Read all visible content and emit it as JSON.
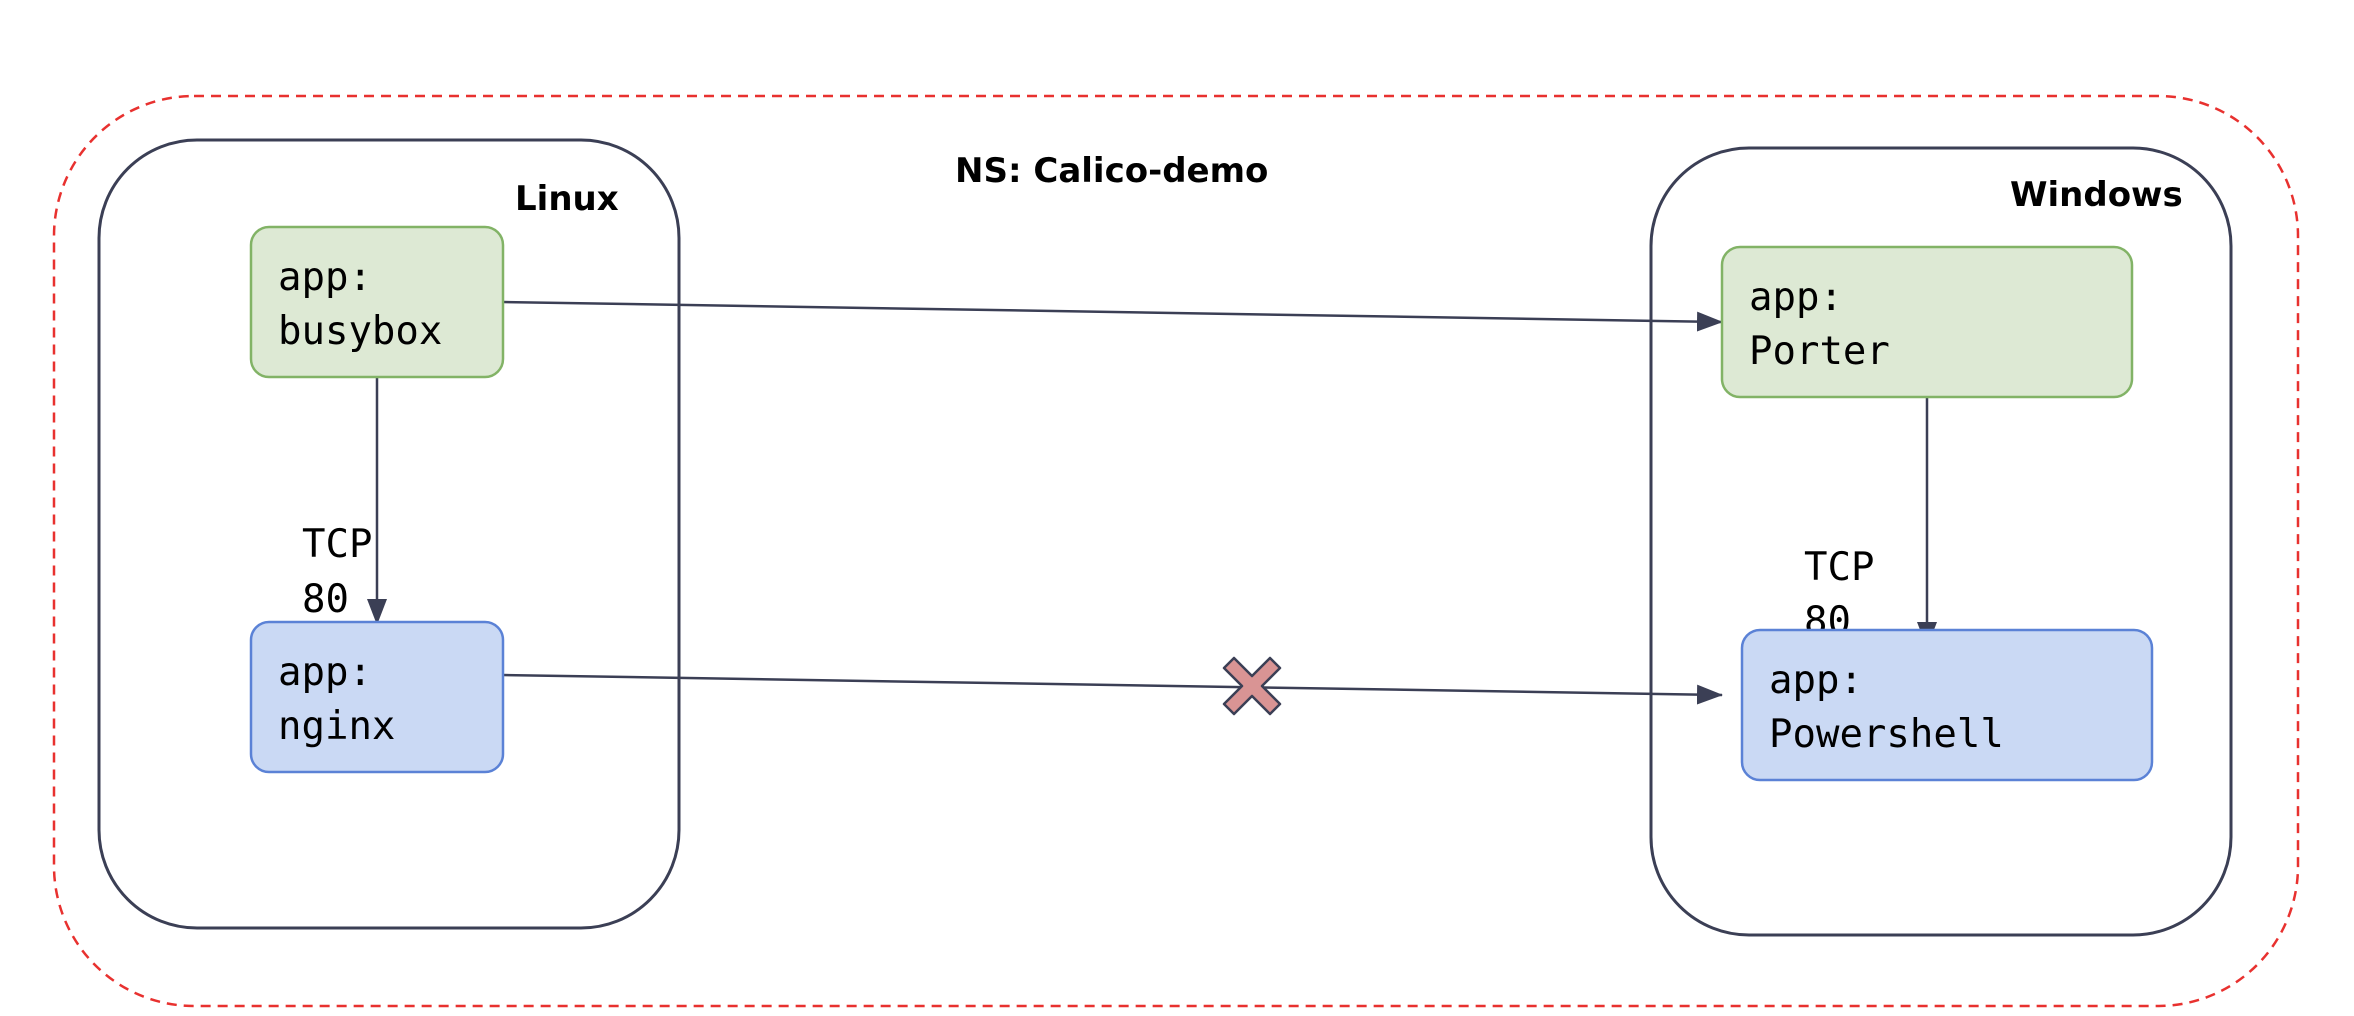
{
  "namespace": {
    "label": "NS: Calico-demo",
    "border_color": "#e8312f"
  },
  "clusters": [
    {
      "id": "linux",
      "label": "Linux"
    },
    {
      "id": "windows",
      "label": "Windows"
    }
  ],
  "nodes": [
    {
      "id": "busybox",
      "line1": "app:",
      "line2": "busybox",
      "cluster": "linux",
      "fill": "#dde9d4",
      "stroke": "#82b366"
    },
    {
      "id": "nginx",
      "line1": "app:",
      "line2": "nginx",
      "cluster": "linux",
      "fill": "#cad9f4",
      "stroke": "#5b82d6"
    },
    {
      "id": "porter",
      "line1": "app:",
      "line2": "Porter",
      "cluster": "windows",
      "fill": "#dde9d4",
      "stroke": "#82b366"
    },
    {
      "id": "powershell",
      "line1": "app:",
      "line2": "Powershell",
      "cluster": "windows",
      "fill": "#cad9f4",
      "stroke": "#5b82d6"
    }
  ],
  "edges": [
    {
      "id": "busybox-to-nginx",
      "from": "busybox",
      "to": "nginx",
      "line1": "TCP",
      "line2": "80",
      "blocked": false
    },
    {
      "id": "porter-to-powershell",
      "from": "porter",
      "to": "powershell",
      "line1": "TCP",
      "line2": "80",
      "blocked": false
    },
    {
      "id": "busybox-to-porter",
      "from": "busybox",
      "to": "porter",
      "blocked": false
    },
    {
      "id": "nginx-to-powershell",
      "from": "nginx",
      "to": "powershell",
      "blocked": true
    }
  ],
  "colors": {
    "cluster_border": "#3b3f55",
    "edge": "#3b3f55",
    "blocked_mark_fill": "#d99494",
    "blocked_mark_stroke": "#3b3f55"
  },
  "icons": {
    "blocked": "x-mark-icon"
  }
}
